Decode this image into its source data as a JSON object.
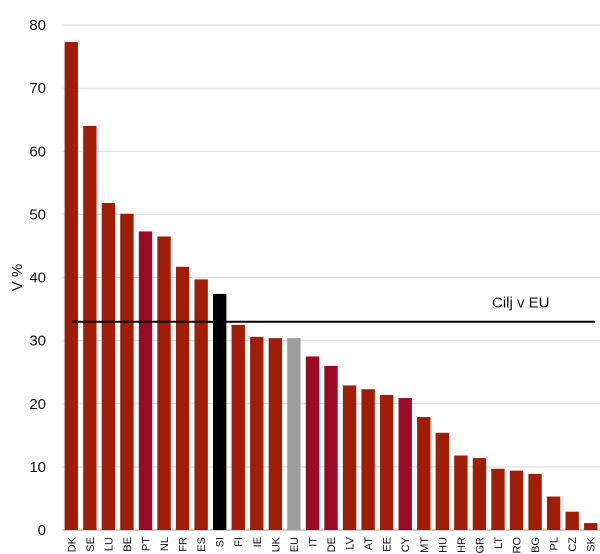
{
  "chart_data": {
    "type": "bar",
    "ylabel": "V %",
    "ylim": [
      0,
      80
    ],
    "yticks": [
      "0",
      "10",
      "20",
      "30",
      "40",
      "50",
      "60",
      "70",
      "80"
    ],
    "grid": "horizontal",
    "categories": [
      "DK",
      "SE",
      "LU",
      "BE",
      "PT",
      "NL",
      "FR",
      "ES",
      "SI",
      "FI",
      "IE",
      "UK",
      "EU",
      "IT",
      "DE",
      "LV",
      "AT",
      "EE",
      "CY",
      "MT",
      "HU",
      "HR",
      "GR",
      "LT",
      "RO",
      "BG",
      "PL",
      "CZ",
      "SK"
    ],
    "values": [
      77.3,
      64.0,
      51.8,
      50.1,
      47.3,
      46.5,
      41.7,
      39.7,
      37.4,
      32.5,
      30.6,
      30.4,
      30.4,
      27.5,
      26.0,
      22.9,
      22.3,
      21.4,
      20.9,
      17.9,
      15.4,
      11.8,
      11.4,
      9.7,
      9.4,
      8.9,
      5.3,
      2.9,
      1.1
    ],
    "bar_colors": [
      "#a01e08",
      "#a01e08",
      "#a01e08",
      "#a01e08",
      "#9a0a26",
      "#a01e08",
      "#a01e08",
      "#a01e08",
      "#000000",
      "#a01e08",
      "#a01e08",
      "#a01e08",
      "#9e9e9e",
      "#9a0a26",
      "#9a0a26",
      "#a01e08",
      "#a01e08",
      "#a01e08",
      "#9a0a26",
      "#a01e08",
      "#a01e08",
      "#a01e08",
      "#a01e08",
      "#a01e08",
      "#a01e08",
      "#a01e08",
      "#a01e08",
      "#a01e08",
      "#a01e08"
    ],
    "target_line": {
      "value": 33,
      "label": "Cilj v EU"
    }
  }
}
